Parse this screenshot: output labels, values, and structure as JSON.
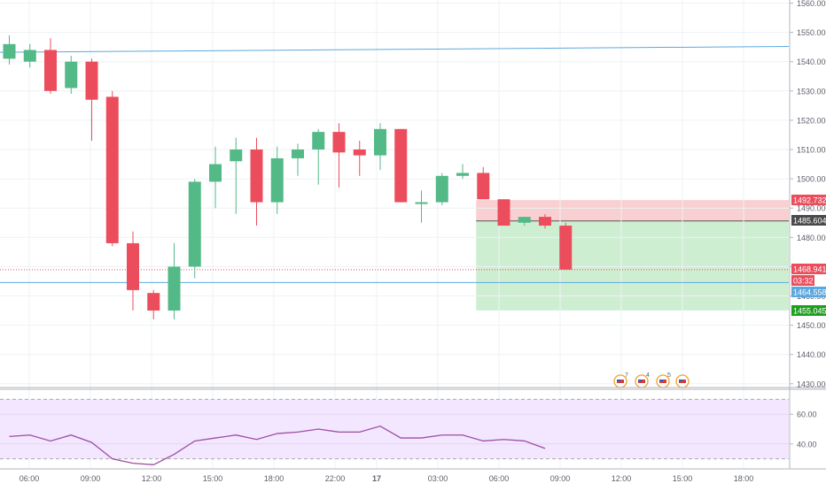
{
  "colors": {
    "up": "#53b987",
    "down": "#eb4d5c",
    "grid": "#eef1f4",
    "axis_text": "#5d606b",
    "horizontal_line": "#5aa8df",
    "stop_zone": "#f8c8c9",
    "target_zone": "#c6ebca",
    "rsi_band": "#f3e6ff",
    "rsi_line": "#9c4fa5"
  },
  "price_axis": {
    "ticks": [
      "1560.000",
      "1550.000",
      "1540.000",
      "1530.000",
      "1520.000",
      "1510.000",
      "1500.000",
      "1490.000",
      "1480.000",
      "1470.000",
      "1460.000",
      "1450.000",
      "1440.000",
      "1430.000"
    ],
    "badges": [
      {
        "label": "1492.732",
        "value": 1492.732,
        "color": "#eb4d5c"
      },
      {
        "label": "1485.604",
        "value": 1485.604,
        "color": "#4a4a4a"
      },
      {
        "label": "1468.941",
        "value": 1468.941,
        "color": "#eb4d5c"
      },
      {
        "label": "03:32",
        "value": 1466.9,
        "color": "#eb4d5c"
      },
      {
        "label": "1464.558",
        "value": 1464.558,
        "color": "#5aa8df"
      },
      {
        "label": "1455.045",
        "value": 1455.045,
        "color": "#1e9e1e"
      }
    ]
  },
  "rsi_axis": {
    "ticks": [
      "60.00",
      "40.00"
    ]
  },
  "time_axis": {
    "labels": [
      "06:00",
      "09:00",
      "12:00",
      "15:00",
      "18:00",
      "22:00",
      "17",
      "03:00",
      "06:00",
      "09:00",
      "12:00",
      "15:00",
      "18:00"
    ]
  },
  "events": {
    "badges": [
      "7",
      "4",
      "5",
      ""
    ]
  },
  "chart_data": {
    "type": "candlestick",
    "ylim": [
      1428,
      1562
    ],
    "candles": [
      {
        "o": 1541,
        "h": 1549,
        "l": 1539,
        "c": 1546
      },
      {
        "o": 1540,
        "h": 1546,
        "l": 1538,
        "c": 1544
      },
      {
        "o": 1544,
        "h": 1548,
        "l": 1529,
        "c": 1530
      },
      {
        "o": 1531,
        "h": 1542,
        "l": 1529,
        "c": 1540
      },
      {
        "o": 1540,
        "h": 1541,
        "l": 1513,
        "c": 1527
      },
      {
        "o": 1528,
        "h": 1530,
        "l": 1477,
        "c": 1478
      },
      {
        "o": 1478,
        "h": 1482,
        "l": 1455,
        "c": 1462
      },
      {
        "o": 1461,
        "h": 1462,
        "l": 1452,
        "c": 1455
      },
      {
        "o": 1455,
        "h": 1478,
        "l": 1452,
        "c": 1470
      },
      {
        "o": 1470,
        "h": 1500,
        "l": 1466,
        "c": 1499
      },
      {
        "o": 1499,
        "h": 1511,
        "l": 1490,
        "c": 1505
      },
      {
        "o": 1506,
        "h": 1514,
        "l": 1488,
        "c": 1510
      },
      {
        "o": 1510,
        "h": 1514,
        "l": 1484,
        "c": 1492
      },
      {
        "o": 1492,
        "h": 1511,
        "l": 1488,
        "c": 1507
      },
      {
        "o": 1507,
        "h": 1512,
        "l": 1501,
        "c": 1510
      },
      {
        "o": 1510,
        "h": 1517,
        "l": 1498,
        "c": 1516
      },
      {
        "o": 1516,
        "h": 1519,
        "l": 1497,
        "c": 1509
      },
      {
        "o": 1510,
        "h": 1513,
        "l": 1501,
        "c": 1508
      },
      {
        "o": 1508,
        "h": 1519,
        "l": 1503,
        "c": 1517
      },
      {
        "o": 1517,
        "h": 1517,
        "l": 1492,
        "c": 1492
      },
      {
        "o": 1492,
        "h": 1496,
        "l": 1485,
        "c": 1492
      },
      {
        "o": 1492,
        "h": 1502,
        "l": 1491,
        "c": 1501
      },
      {
        "o": 1501,
        "h": 1505,
        "l": 1500,
        "c": 1502
      },
      {
        "o": 1502,
        "h": 1504,
        "l": 1493,
        "c": 1493
      },
      {
        "o": 1493,
        "h": 1493,
        "l": 1484,
        "c": 1484
      },
      {
        "o": 1485,
        "h": 1487,
        "l": 1484,
        "c": 1487
      },
      {
        "o": 1487,
        "h": 1488,
        "l": 1483,
        "c": 1484
      },
      {
        "o": 1484,
        "h": 1485,
        "l": 1469,
        "c": 1469
      }
    ],
    "horizontal_lines": [
      {
        "value_start": 1543.2,
        "value_end": 1545.2,
        "color": "#5aa8df"
      },
      {
        "value": 1464.558,
        "color": "#5aa8df"
      },
      {
        "value": 1468.941,
        "color": "#eb4d5c",
        "dotted": true
      }
    ],
    "position": {
      "entry": 1485.604,
      "stop": 1492.732,
      "target": 1455.045,
      "start_candle": 23
    },
    "rsi": {
      "ylim": [
        25,
        75
      ],
      "levels": [
        70,
        30
      ],
      "values": [
        45,
        46,
        42,
        46,
        41,
        30,
        27,
        26,
        33,
        42,
        44,
        46,
        43,
        47,
        48,
        50,
        48,
        48,
        52,
        44,
        44,
        46,
        46,
        42,
        43,
        42,
        37
      ]
    }
  }
}
